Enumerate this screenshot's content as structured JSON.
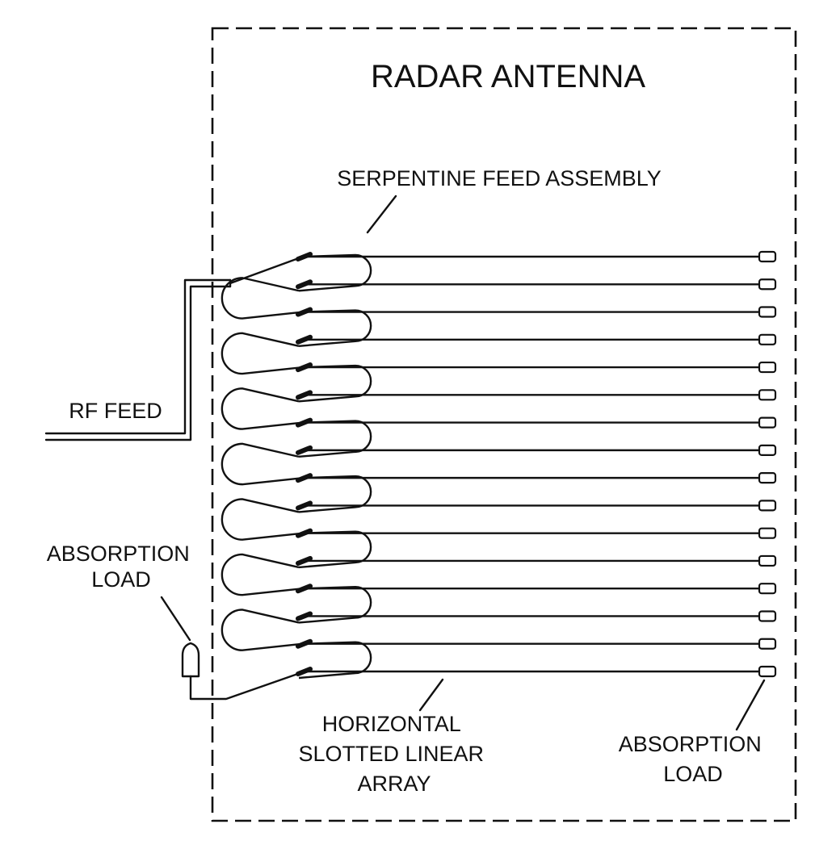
{
  "diagram": {
    "title": "RADAR ANTENNA",
    "labels": {
      "serpentine": "SERPENTINE FEED ASSEMBLY",
      "rf_feed": "RF FEED",
      "absorption_left": [
        "ABSORPTION",
        "LOAD"
      ],
      "horizontal_array": [
        "HORIZONTAL",
        "SLOTTED  LINEAR",
        "ARRAY"
      ],
      "absorption_right": [
        "ABSORPTION",
        "LOAD"
      ]
    },
    "array_line_count": 16,
    "colors": {
      "ink": "#111111",
      "background": "#ffffff"
    }
  }
}
